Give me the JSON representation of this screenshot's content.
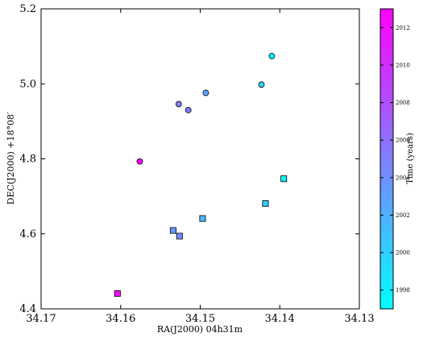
{
  "chart_data": {
    "type": "scatter",
    "xlabel": "RA(J2000) 04h31m",
    "ylabel": "DEC(J2000) +18°08′",
    "x_reversed": true,
    "xlim": [
      34.17,
      34.13
    ],
    "ylim": [
      4.4,
      5.2
    ],
    "x_ticks": [
      "34.17",
      "34.16",
      "34.15",
      "34.14",
      "34.13"
    ],
    "y_ticks": [
      "4.4",
      "4.6",
      "4.8",
      "5.0",
      "5.2"
    ],
    "colorbar": {
      "label": "Time (years)",
      "range": [
        1997,
        2013
      ],
      "ticks": [
        "1998",
        "2000",
        "2002",
        "2004",
        "2006",
        "2008",
        "2010",
        "2012"
      ],
      "color_low": "#00ffff",
      "color_high": "#ff00ff"
    },
    "series": [
      {
        "marker": "circle",
        "points": [
          {
            "x": 34.1576,
            "y": 4.793,
            "year": 2012.5
          },
          {
            "x": 34.1527,
            "y": 4.946,
            "year": 2005.0
          },
          {
            "x": 34.1515,
            "y": 4.93,
            "year": 2005.5
          },
          {
            "x": 34.1493,
            "y": 4.976,
            "year": 2002.5
          },
          {
            "x": 34.1423,
            "y": 4.998,
            "year": 1999.5
          },
          {
            "x": 34.141,
            "y": 5.074,
            "year": 1998.0
          }
        ]
      },
      {
        "marker": "square",
        "points": [
          {
            "x": 34.1604,
            "y": 4.441,
            "year": 2012.5
          },
          {
            "x": 34.1534,
            "y": 4.609,
            "year": 2003.5
          },
          {
            "x": 34.1526,
            "y": 4.594,
            "year": 2004.5
          },
          {
            "x": 34.1497,
            "y": 4.641,
            "year": 2001.5
          },
          {
            "x": 34.1418,
            "y": 4.681,
            "year": 2000.0
          },
          {
            "x": 34.1395,
            "y": 4.747,
            "year": 1998.0
          }
        ]
      }
    ]
  }
}
